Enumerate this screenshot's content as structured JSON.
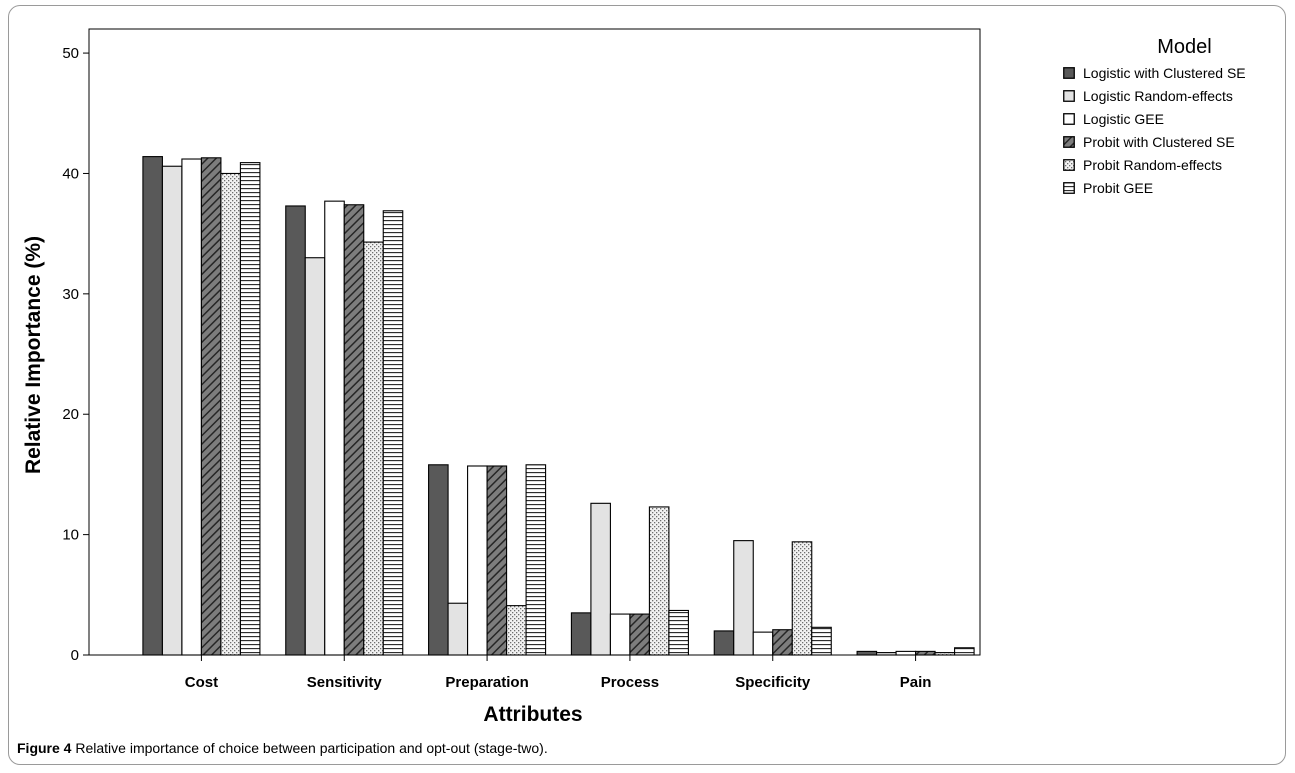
{
  "caption": {
    "label": "Figure 4",
    "text": "Relative importance of choice between participation and opt-out (stage-two)."
  },
  "chart_data": {
    "type": "bar",
    "title": "",
    "xlabel": "Attributes",
    "ylabel": "Relative Importance (%)",
    "ylim": [
      0,
      52
    ],
    "yticks": [
      0,
      10,
      20,
      30,
      40,
      50
    ],
    "grid": false,
    "legend_title": "Model",
    "legend_position": "right",
    "categories": [
      "Cost",
      "Sensitivity",
      "Preparation",
      "Process",
      "Specificity",
      "Pain"
    ],
    "series": [
      {
        "name": "Logistic with Clustered SE",
        "pattern": "solid-dark",
        "color": "#595959",
        "values": [
          41.4,
          37.3,
          15.8,
          3.5,
          2.0,
          0.3
        ]
      },
      {
        "name": "Logistic Random-effects",
        "pattern": "solid-light",
        "color": "#e3e3e3",
        "values": [
          40.6,
          33.0,
          4.3,
          12.6,
          9.5,
          0.2
        ]
      },
      {
        "name": "Logistic GEE",
        "pattern": "white",
        "color": "#ffffff",
        "values": [
          41.2,
          37.7,
          15.7,
          3.4,
          1.9,
          0.3
        ]
      },
      {
        "name": "Probit with Clustered SE",
        "pattern": "diagonal",
        "color": "#8c8c8c",
        "values": [
          41.3,
          37.4,
          15.7,
          3.4,
          2.1,
          0.3
        ]
      },
      {
        "name": "Probit Random-effects",
        "pattern": "dots",
        "color": "#e0e0e0",
        "values": [
          40.0,
          34.3,
          4.1,
          12.3,
          9.4,
          0.2
        ]
      },
      {
        "name": "Probit GEE",
        "pattern": "horizontal",
        "color": "#ffffff",
        "values": [
          40.9,
          36.9,
          15.8,
          3.7,
          2.3,
          0.6
        ]
      }
    ]
  }
}
